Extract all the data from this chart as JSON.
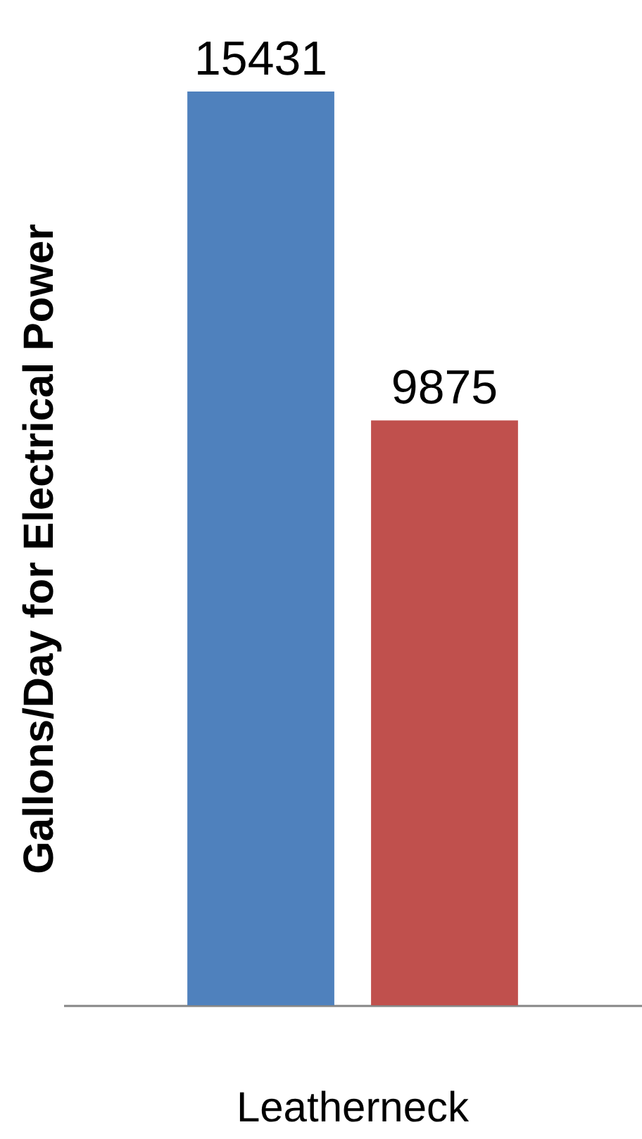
{
  "chart_data": {
    "type": "bar",
    "ylabel": "Gallons/Day for Electrical Power",
    "categories": [
      "Leatherneck"
    ],
    "series": [
      {
        "color": "#4f81bd",
        "values": [
          15431
        ]
      },
      {
        "color": "#c0504d",
        "values": [
          9875
        ]
      }
    ],
    "data_labels": true,
    "grid": false,
    "legend": false,
    "tick_labels": "x"
  }
}
